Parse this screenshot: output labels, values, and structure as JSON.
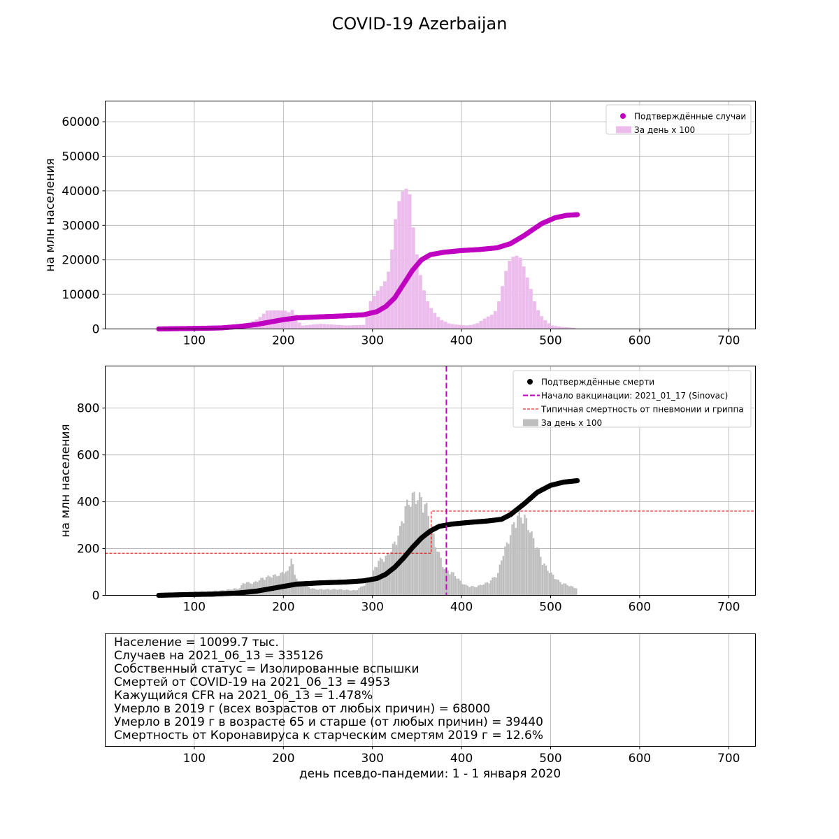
{
  "figure": {
    "title": "COVID-19 Azerbaijan",
    "xlabel": "день псевдо-пандемии: 1 - 1 января 2020"
  },
  "colors": {
    "cases": "#c000c0",
    "cases_daily": "#ebbcec",
    "deaths": "#000000",
    "deaths_daily": "#bebebe",
    "vaccination": "#c000c0",
    "flu_line": "#dd0000",
    "grid": "#b0b0b0"
  },
  "info_lines": [
    "Население = 10099.7 тыс.",
    "Случаев на 2021_06_13 = 335126",
    "Собственный статус = Изолированные вспышки",
    "Смертей от COVID-19 на 2021_06_13 = 4953",
    "Кажущийся CFR на 2021_06_13 = 1.478%",
    "Умерло в 2019 г (всех возрастов от любых причин) = 68000",
    "Умерло в 2019 г в возрасте 65 и старше (от любых причин) = 39440",
    "Смертность от Коронавируса к старческим смертям 2019 г = 12.6%"
  ],
  "chart_data": [
    {
      "type": "line",
      "ylabel": "на млн населения",
      "xlim": [
        0,
        730
      ],
      "ylim": [
        0,
        66000
      ],
      "xticks": [
        "100",
        "200",
        "300",
        "400",
        "500",
        "600",
        "700"
      ],
      "yticks": [
        "0",
        "10000",
        "20000",
        "30000",
        "40000",
        "50000",
        "60000"
      ],
      "grid": true,
      "legend_position": "top-right",
      "legend": [
        "Подтверждённые случаи",
        "За день x 100"
      ],
      "series": [
        {
          "name": "Подтверждённые случаи",
          "kind": "scatter",
          "points": [
            [
              60,
              0
            ],
            [
              100,
              150
            ],
            [
              130,
              300
            ],
            [
              150,
              700
            ],
            [
              170,
              1300
            ],
            [
              185,
              2000
            ],
            [
              200,
              2700
            ],
            [
              215,
              3200
            ],
            [
              240,
              3500
            ],
            [
              270,
              3800
            ],
            [
              290,
              4100
            ],
            [
              305,
              5000
            ],
            [
              315,
              6500
            ],
            [
              325,
              9000
            ],
            [
              335,
              13000
            ],
            [
              345,
              17000
            ],
            [
              355,
              20000
            ],
            [
              365,
              21500
            ],
            [
              380,
              22200
            ],
            [
              400,
              22700
            ],
            [
              420,
              23000
            ],
            [
              440,
              23500
            ],
            [
              455,
              24700
            ],
            [
              470,
              27000
            ],
            [
              490,
              30500
            ],
            [
              505,
              32200
            ],
            [
              518,
              32900
            ],
            [
              530,
              33100
            ]
          ]
        },
        {
          "name": "За день x 100",
          "kind": "bar",
          "points": [
            [
              140,
              400
            ],
            [
              160,
              1800
            ],
            [
              170,
              3000
            ],
            [
              175,
              4200
            ],
            [
              180,
              5300
            ],
            [
              190,
              5400
            ],
            [
              200,
              5300
            ],
            [
              207,
              4500
            ],
            [
              210,
              7500
            ],
            [
              213,
              2500
            ],
            [
              220,
              1000
            ],
            [
              240,
              1500
            ],
            [
              270,
              1000
            ],
            [
              290,
              1200
            ],
            [
              295,
              7700
            ],
            [
              305,
              11500
            ],
            [
              310,
              13000
            ],
            [
              315,
              15000
            ],
            [
              320,
              23000
            ],
            [
              325,
              34000
            ],
            [
              330,
              39000
            ],
            [
              335,
              41000
            ],
            [
              340,
              39000
            ],
            [
              345,
              27000
            ],
            [
              350,
              18000
            ],
            [
              355,
              12000
            ],
            [
              360,
              8000
            ],
            [
              365,
              5600
            ],
            [
              370,
              4000
            ],
            [
              375,
              2700
            ],
            [
              385,
              1500
            ],
            [
              395,
              1200
            ],
            [
              405,
              1000
            ],
            [
              415,
              1500
            ],
            [
              425,
              3200
            ],
            [
              435,
              4500
            ],
            [
              440,
              8000
            ],
            [
              445,
              13500
            ],
            [
              450,
              19000
            ],
            [
              455,
              20800
            ],
            [
              460,
              21200
            ],
            [
              465,
              20500
            ],
            [
              470,
              16500
            ],
            [
              475,
              12500
            ],
            [
              480,
              8000
            ],
            [
              485,
              4800
            ],
            [
              490,
              3000
            ],
            [
              495,
              1800
            ],
            [
              500,
              1000
            ],
            [
              510,
              600
            ],
            [
              525,
              300
            ]
          ]
        }
      ]
    },
    {
      "type": "line",
      "ylabel": "на млн населения",
      "xlim": [
        0,
        730
      ],
      "ylim": [
        0,
        980
      ],
      "xticks": [
        "100",
        "200",
        "300",
        "400",
        "500",
        "600",
        "700"
      ],
      "yticks": [
        "0",
        "200",
        "400",
        "600",
        "800"
      ],
      "grid": true,
      "legend_position": "top-right",
      "legend": [
        "Подтверждённые смерти",
        "Начало вакцинации: 2021_01_17 (Sinovac)",
        "Типичная смертность от пневмонии и гриппа",
        "За день x 100"
      ],
      "vaccination_day": 383,
      "flu_steps": [
        [
          0,
          366,
          180
        ],
        [
          366,
          730,
          360
        ]
      ],
      "series": [
        {
          "name": "Подтверждённые смерти",
          "kind": "scatter",
          "points": [
            [
              60,
              0
            ],
            [
              90,
              3
            ],
            [
              120,
              5
            ],
            [
              150,
              10
            ],
            [
              170,
              18
            ],
            [
              185,
              28
            ],
            [
              200,
              38
            ],
            [
              215,
              48
            ],
            [
              240,
              53
            ],
            [
              270,
              57
            ],
            [
              290,
              62
            ],
            [
              305,
              72
            ],
            [
              315,
              90
            ],
            [
              325,
              120
            ],
            [
              335,
              160
            ],
            [
              345,
              205
            ],
            [
              355,
              245
            ],
            [
              365,
              275
            ],
            [
              375,
              295
            ],
            [
              390,
              305
            ],
            [
              410,
              312
            ],
            [
              430,
              318
            ],
            [
              445,
              325
            ],
            [
              455,
              345
            ],
            [
              470,
              390
            ],
            [
              485,
              440
            ],
            [
              500,
              470
            ],
            [
              515,
              484
            ],
            [
              530,
              490
            ]
          ]
        },
        {
          "name": "За день x 100",
          "kind": "bar",
          "points": [
            [
              70,
              5
            ],
            [
              100,
              15
            ],
            [
              130,
              20
            ],
            [
              150,
              30
            ],
            [
              155,
              55
            ],
            [
              165,
              50
            ],
            [
              175,
              70
            ],
            [
              185,
              80
            ],
            [
              195,
              85
            ],
            [
              200,
              100
            ],
            [
              205,
              95
            ],
            [
              208,
              170
            ],
            [
              212,
              80
            ],
            [
              220,
              45
            ],
            [
              235,
              25
            ],
            [
              260,
              25
            ],
            [
              280,
              20
            ],
            [
              295,
              55
            ],
            [
              305,
              140
            ],
            [
              315,
              160
            ],
            [
              320,
              190
            ],
            [
              325,
              220
            ],
            [
              330,
              270
            ],
            [
              335,
              355
            ],
            [
              340,
              385
            ],
            [
              345,
              410
            ],
            [
              350,
              405
            ],
            [
              355,
              395
            ],
            [
              360,
              360
            ],
            [
              365,
              290
            ],
            [
              370,
              210
            ],
            [
              375,
              160
            ],
            [
              380,
              110
            ],
            [
              385,
              100
            ],
            [
              390,
              90
            ],
            [
              395,
              70
            ],
            [
              400,
              50
            ],
            [
              405,
              40
            ],
            [
              415,
              35
            ],
            [
              430,
              55
            ],
            [
              440,
              90
            ],
            [
              445,
              165
            ],
            [
              450,
              210
            ],
            [
              455,
              265
            ],
            [
              460,
              320
            ],
            [
              465,
              330
            ],
            [
              470,
              320
            ],
            [
              475,
              280
            ],
            [
              480,
              230
            ],
            [
              485,
              190
            ],
            [
              490,
              140
            ],
            [
              495,
              110
            ],
            [
              500,
              90
            ],
            [
              505,
              70
            ],
            [
              510,
              55
            ],
            [
              520,
              40
            ],
            [
              528,
              30
            ]
          ]
        }
      ]
    }
  ]
}
